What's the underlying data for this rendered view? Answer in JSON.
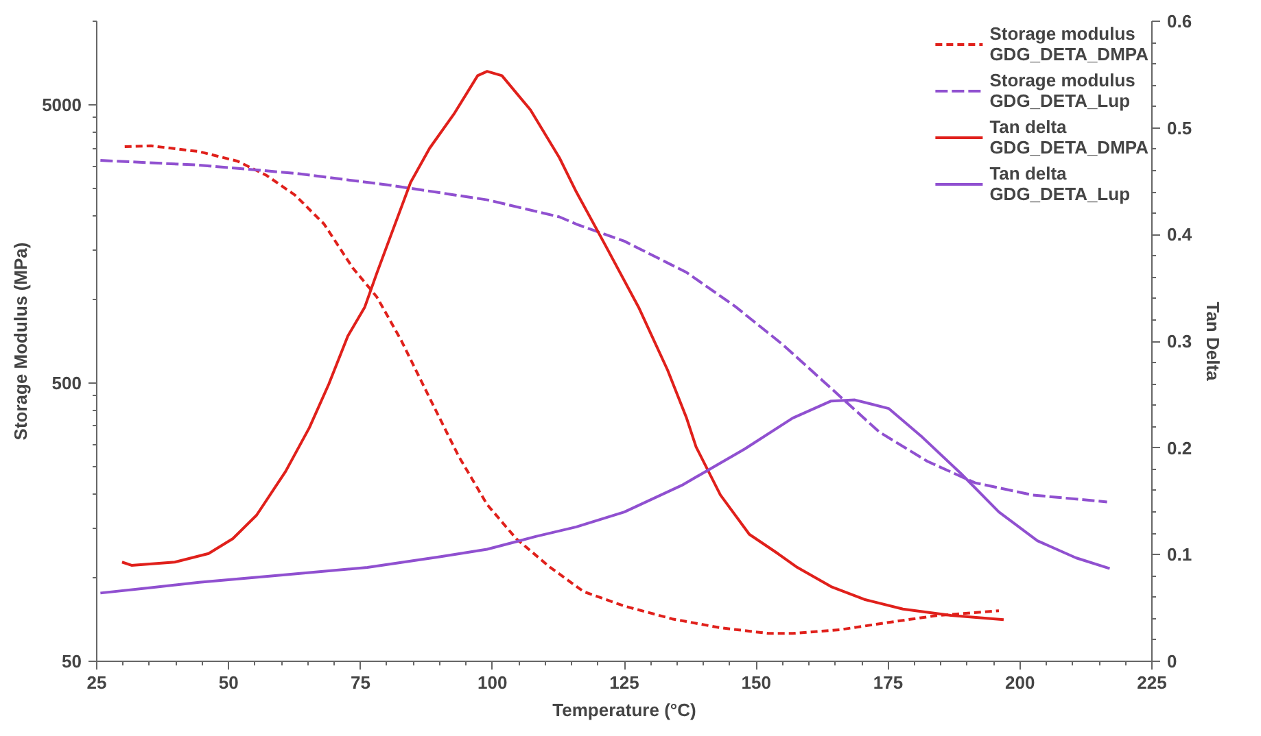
{
  "chart_data": {
    "type": "line",
    "xlabel": "Temperature (°C)",
    "ylabel": "Storage Modulus (MPa)",
    "y2label": "Tan Delta",
    "xlim": [
      25,
      225
    ],
    "xticks": [
      25,
      50,
      75,
      100,
      125,
      150,
      175,
      200,
      225
    ],
    "ylim": [
      50,
      10000
    ],
    "yticks": [
      50,
      500,
      5000
    ],
    "log": "y",
    "y2lim": [
      0,
      0.6
    ],
    "y2ticks": [
      0,
      0.1,
      0.2,
      0.3,
      0.4,
      0.5,
      0.6
    ],
    "grid": false,
    "legend": "top right",
    "marker": "none",
    "series": [
      {
        "name": "Storage modulus GDG_DETA_DMPA",
        "color": "#e0201b",
        "line_style": "dashed",
        "x": [
          30.3,
          35.3,
          44.4,
          51.7,
          57.2,
          62.6,
          68.1,
          73.5,
          78.1,
          82.7,
          88.1,
          93.6,
          99.0,
          104.5,
          110.9,
          117.3,
          125.0,
          134.1,
          143.2,
          152.3,
          156.9,
          166.0,
          175.1,
          184.2,
          196.0
        ],
        "values": [
          3540,
          3565,
          3400,
          3140,
          2790,
          2370,
          1865,
          1300,
          1020,
          713,
          442,
          273,
          183,
          138,
          109,
          89,
          79,
          71,
          66,
          63,
          63,
          65,
          69,
          73,
          76
        ]
      },
      {
        "name": "Storage modulus GDG_DETA_Lup",
        "color": "#9050d0",
        "line_style": "dashed",
        "x": [
          25.7,
          44.4,
          62.6,
          80.8,
          99.0,
          112.7,
          115.9,
          125.0,
          136.8,
          146.0,
          155.1,
          164.2,
          173.3,
          182.4,
          191.5,
          202.4,
          216.5
        ],
        "values": [
          3160,
          3040,
          2840,
          2570,
          2280,
          1980,
          1865,
          1620,
          1250,
          944,
          686,
          479,
          334,
          262,
          219,
          198,
          187
        ]
      },
      {
        "name": "Tan delta GDG_DETA_DMPA",
        "color": "#e0201b",
        "line_style": "solid",
        "axis": "y2",
        "x": [
          29.8,
          31.6,
          39.8,
          46.2,
          50.8,
          55.3,
          60.8,
          65.3,
          69.0,
          72.6,
          75.8,
          78.1,
          80.8,
          84.5,
          88.1,
          92.7,
          97.2,
          99.0,
          101.8,
          107.2,
          112.7,
          115.9,
          121.3,
          127.7,
          133.2,
          136.8,
          138.6,
          143.2,
          148.7,
          154.1,
          157.8,
          164.2,
          170.5,
          177.8,
          186.9,
          196.9
        ],
        "values": [
          0.093,
          0.09,
          0.093,
          0.101,
          0.115,
          0.137,
          0.178,
          0.219,
          0.26,
          0.305,
          0.332,
          0.364,
          0.4,
          0.449,
          0.481,
          0.513,
          0.549,
          0.553,
          0.549,
          0.517,
          0.472,
          0.44,
          0.391,
          0.332,
          0.273,
          0.228,
          0.201,
          0.156,
          0.119,
          0.101,
          0.088,
          0.07,
          0.058,
          0.049,
          0.043,
          0.039
        ]
      },
      {
        "name": "Tan delta GDG_DETA_Lup",
        "color": "#9050d0",
        "line_style": "solid",
        "axis": "y2",
        "x": [
          25.7,
          35.3,
          44.4,
          58.1,
          76.3,
          90.0,
          99.0,
          108.2,
          115.9,
          125.0,
          135.9,
          147.8,
          156.9,
          164.2,
          168.7,
          175.1,
          181.5,
          188.8,
          196.0,
          203.3,
          210.6,
          217.0
        ],
        "values": [
          0.064,
          0.069,
          0.074,
          0.08,
          0.088,
          0.098,
          0.105,
          0.117,
          0.126,
          0.14,
          0.165,
          0.199,
          0.228,
          0.244,
          0.245,
          0.237,
          0.21,
          0.176,
          0.14,
          0.113,
          0.097,
          0.087
        ]
      }
    ]
  }
}
